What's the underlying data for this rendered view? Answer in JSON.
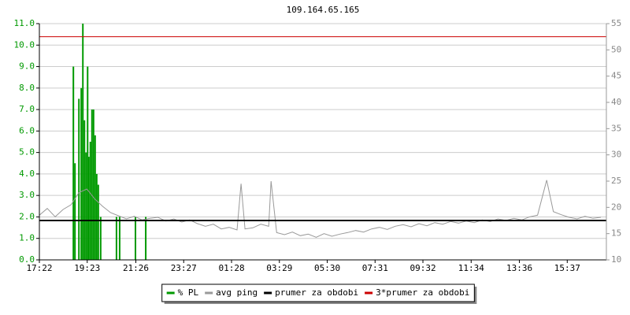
{
  "chart_data": {
    "type": "line",
    "title": "109.164.65.165",
    "xlim": [
      0,
      1434
    ],
    "xticks": [
      {
        "value": 0,
        "label": "17:22"
      },
      {
        "value": 121,
        "label": "19:23"
      },
      {
        "value": 244,
        "label": "21:26"
      },
      {
        "value": 365,
        "label": "23:27"
      },
      {
        "value": 486,
        "label": "01:28"
      },
      {
        "value": 607,
        "label": "03:29"
      },
      {
        "value": 728,
        "label": "05:30"
      },
      {
        "value": 849,
        "label": "07:31"
      },
      {
        "value": 970,
        "label": "09:32"
      },
      {
        "value": 1092,
        "label": "11:34"
      },
      {
        "value": 1214,
        "label": "13:36"
      },
      {
        "value": 1335,
        "label": "15:37"
      }
    ],
    "ylim": [
      0,
      11
    ],
    "yticks": [
      {
        "value": 0,
        "label": "0.0"
      },
      {
        "value": 1,
        "label": "1.0"
      },
      {
        "value": 2,
        "label": "2.0"
      },
      {
        "value": 3,
        "label": "3.0"
      },
      {
        "value": 4,
        "label": "4.0"
      },
      {
        "value": 5,
        "label": "5.0"
      },
      {
        "value": 6,
        "label": "6.0"
      },
      {
        "value": 7,
        "label": "7.0"
      },
      {
        "value": 8,
        "label": "8.0"
      },
      {
        "value": 9,
        "label": "9.0"
      },
      {
        "value": 10,
        "label": "10.0"
      },
      {
        "value": 11,
        "label": "11.0"
      }
    ],
    "y2lim": [
      10,
      55
    ],
    "y2ticks": [
      10,
      15,
      20,
      25,
      30,
      35,
      40,
      45,
      50,
      55
    ],
    "grid": true,
    "legend": "bottom",
    "series": [
      {
        "name": "% PL",
        "color": "#009900",
        "axis": "y",
        "x": [
          86,
          90,
          100,
          106,
          110,
          114,
          118,
          122,
          125,
          129,
          133,
          137,
          141,
          145,
          149,
          155,
          195,
          203,
          243,
          269
        ],
        "values": [
          9.0,
          4.5,
          7.5,
          8.0,
          11.0,
          6.5,
          5.0,
          9.0,
          4.8,
          5.5,
          7.0,
          7.0,
          5.8,
          4.0,
          3.5,
          2.0,
          2.0,
          2.0,
          2.0,
          2.0
        ]
      },
      {
        "name": "avg ping",
        "color": "#999999",
        "axis": "y2",
        "x": [
          0,
          20,
          40,
          60,
          80,
          100,
          120,
          140,
          160,
          180,
          200,
          220,
          240,
          260,
          280,
          300,
          320,
          340,
          360,
          380,
          400,
          420,
          440,
          460,
          480,
          500,
          510,
          520,
          540,
          560,
          580,
          586,
          600,
          620,
          640,
          660,
          680,
          700,
          720,
          740,
          760,
          780,
          800,
          820,
          840,
          860,
          880,
          900,
          920,
          940,
          960,
          980,
          1000,
          1020,
          1040,
          1060,
          1080,
          1100,
          1120,
          1140,
          1160,
          1180,
          1200,
          1220,
          1240,
          1260,
          1283,
          1300,
          1320,
          1340,
          1360,
          1380,
          1400,
          1420
        ],
        "values": [
          18.5,
          19.8,
          18.2,
          19.6,
          20.5,
          22.8,
          23.5,
          21.6,
          20.2,
          19.0,
          18.4,
          17.8,
          18.3,
          17.6,
          17.9,
          18.1,
          17.4,
          17.8,
          17.2,
          17.6,
          16.9,
          16.4,
          16.8,
          15.9,
          16.2,
          15.7,
          24.5,
          15.9,
          16.1,
          16.8,
          16.4,
          25.0,
          15.2,
          14.8,
          15.3,
          14.6,
          14.9,
          14.3,
          15.0,
          14.5,
          14.9,
          15.2,
          15.6,
          15.3,
          15.9,
          16.2,
          15.8,
          16.4,
          16.7,
          16.3,
          16.9,
          16.5,
          17.1,
          16.8,
          17.3,
          17.0,
          17.4,
          17.1,
          17.6,
          17.3,
          17.8,
          17.5,
          17.9,
          17.6,
          18.2,
          18.5,
          25.2,
          19.2,
          18.6,
          18.1,
          17.8,
          18.3,
          17.9,
          18.1
        ]
      },
      {
        "name": "prumer za obdobi",
        "color": "#000000",
        "axis": "y2",
        "value": 17.5
      },
      {
        "name": "3*prumer za obdobi",
        "color": "#cc0000",
        "axis": "y2",
        "value": 52.5
      }
    ]
  }
}
